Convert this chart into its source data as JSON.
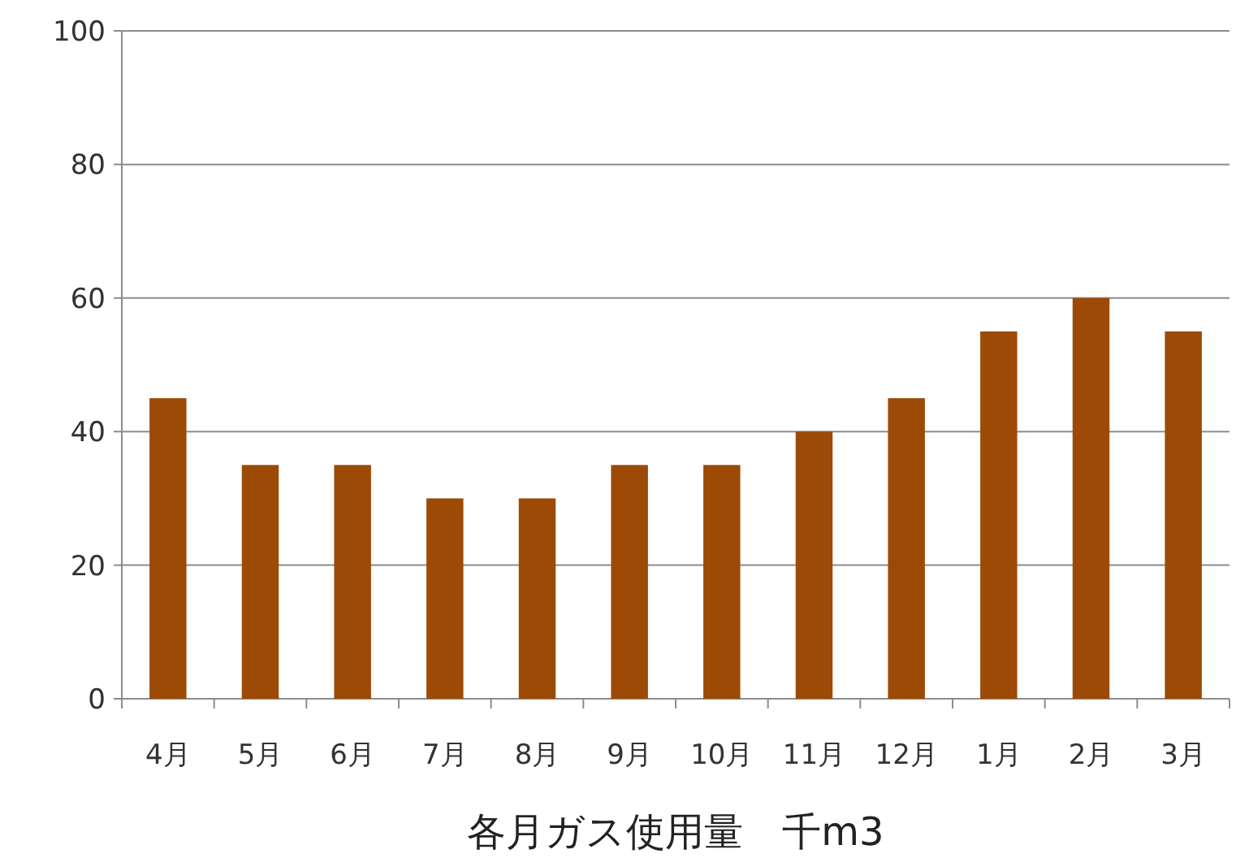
{
  "chart_data": {
    "type": "bar",
    "xlabel": "各月ガス使用量　千m3",
    "categories": [
      "4月",
      "5月",
      "6月",
      "7月",
      "8月",
      "9月",
      "10月",
      "11月",
      "12月",
      "1月",
      "2月",
      "3月"
    ],
    "values": [
      45,
      35,
      35,
      30,
      30,
      35,
      35,
      40,
      45,
      55,
      60,
      55
    ],
    "color": "#9c4a05",
    "ylim": [
      0,
      100
    ],
    "yticks": [
      0,
      20,
      40,
      60,
      80,
      100
    ],
    "grid": "y"
  }
}
